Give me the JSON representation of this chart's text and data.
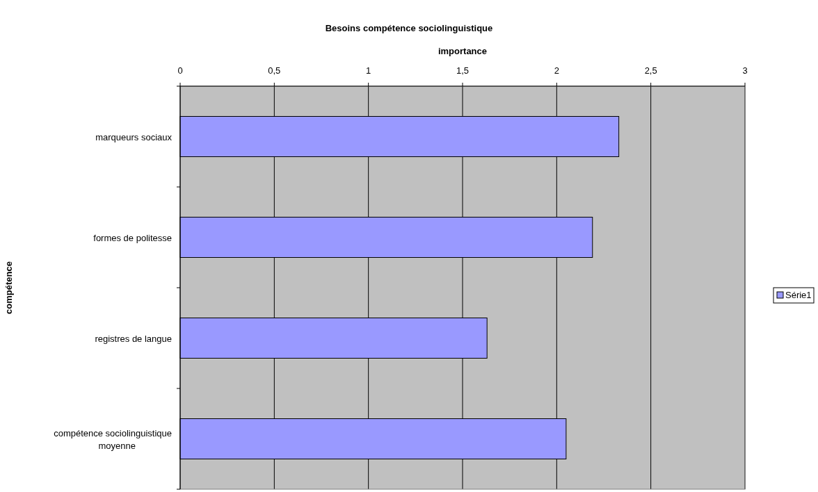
{
  "chart_data": {
    "type": "bar",
    "orientation": "horizontal",
    "title": "Besoins compétence sociolinguistique",
    "xlabel": "importance",
    "ylabel": "compétence",
    "categories": [
      "marqueurs sociaux",
      "formes de politesse",
      "registres de langue",
      "compétence sociolinguistique moyenne"
    ],
    "series": [
      {
        "name": "Série1",
        "color": "#9999ff",
        "values": [
          2.33,
          2.19,
          1.63,
          2.05
        ]
      }
    ],
    "xlim": [
      0,
      3
    ],
    "xticks": [
      0,
      {
        "value": 0.5,
        "label": "0,5"
      },
      1,
      {
        "value": 1.5,
        "label": "1,5"
      },
      2,
      {
        "value": 2.5,
        "label": "2,5"
      },
      3
    ],
    "grid": "x",
    "legend": "right"
  }
}
